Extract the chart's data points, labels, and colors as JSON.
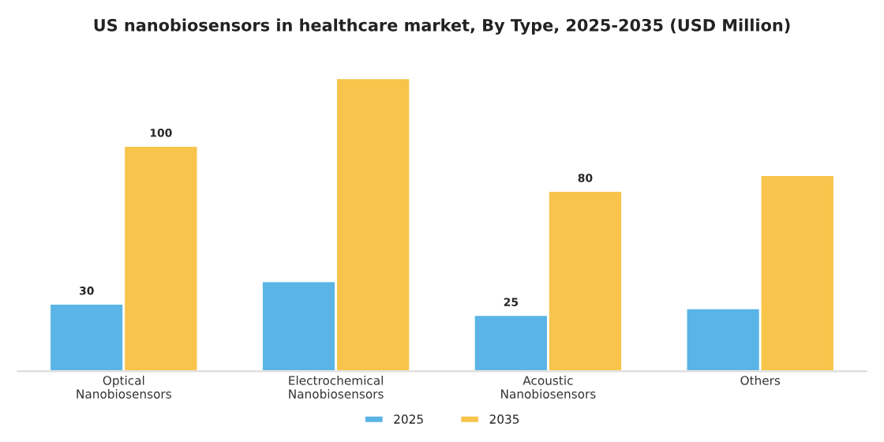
{
  "chart_data": {
    "type": "bar",
    "title": "US nanobiosensors in healthcare market, By Type, 2025-2035 (USD Million)",
    "categories": [
      "Optical\nNanobiosensors",
      "Electrochemical\nNanobiosensors",
      "Acoustic\nNanobiosensors",
      "Others"
    ],
    "series": [
      {
        "name": "2025",
        "color": "#5ab4e5",
        "values": [
          30,
          40,
          25,
          28
        ],
        "value_labels": [
          "30",
          null,
          "25",
          null
        ]
      },
      {
        "name": "2035",
        "color": "#f8c44b",
        "values": [
          100,
          130,
          80,
          87
        ],
        "value_labels": [
          "100",
          null,
          "80",
          null
        ]
      }
    ],
    "legend": "bottom",
    "grid": false
  }
}
